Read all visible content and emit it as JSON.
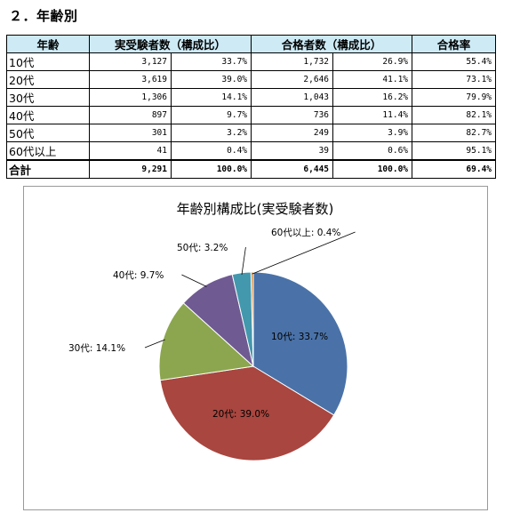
{
  "section": {
    "title": "２．年齢別"
  },
  "table": {
    "headers": [
      "年齢",
      "実受験者数（構成比）",
      "合格者数（構成比）",
      "合格率"
    ],
    "rows": [
      {
        "label": "10代",
        "examinees": "3,127",
        "examinees_ratio": "33.7%",
        "passers": "1,732",
        "passers_ratio": "26.9%",
        "rate": "55.4%"
      },
      {
        "label": "20代",
        "examinees": "3,619",
        "examinees_ratio": "39.0%",
        "passers": "2,646",
        "passers_ratio": "41.1%",
        "rate": "73.1%"
      },
      {
        "label": "30代",
        "examinees": "1,306",
        "examinees_ratio": "14.1%",
        "passers": "1,043",
        "passers_ratio": "16.2%",
        "rate": "79.9%"
      },
      {
        "label": "40代",
        "examinees": "897",
        "examinees_ratio": "9.7%",
        "passers": "736",
        "passers_ratio": "11.4%",
        "rate": "82.1%"
      },
      {
        "label": "50代",
        "examinees": "301",
        "examinees_ratio": "3.2%",
        "passers": "249",
        "passers_ratio": "3.9%",
        "rate": "82.7%"
      },
      {
        "label": "60代以上",
        "examinees": "41",
        "examinees_ratio": "0.4%",
        "passers": "39",
        "passers_ratio": "0.6%",
        "rate": "95.1%"
      }
    ],
    "total": {
      "label": "合計",
      "examinees": "9,291",
      "examinees_ratio": "100.0%",
      "passers": "6,445",
      "passers_ratio": "100.0%",
      "rate": "69.4%"
    }
  },
  "colors": {
    "header_bg": "#cdeaf5"
  },
  "chart_data": {
    "type": "pie",
    "title": "年齢別構成比(実受験者数)",
    "categories": [
      "10代",
      "20代",
      "30代",
      "40代",
      "50代",
      "60代以上"
    ],
    "values": [
      33.7,
      39.0,
      14.1,
      9.7,
      3.2,
      0.4
    ],
    "labels": [
      "10代: 33.7%",
      "20代: 39.0%",
      "30代: 14.1%",
      "40代: 9.7%",
      "50代: 3.2%",
      "60代以上: 0.4%"
    ],
    "colors": [
      "#4a72a8",
      "#a8463f",
      "#8ba64e",
      "#6f5a92",
      "#4398ad",
      "#d98a3a"
    ],
    "legend": "none"
  }
}
